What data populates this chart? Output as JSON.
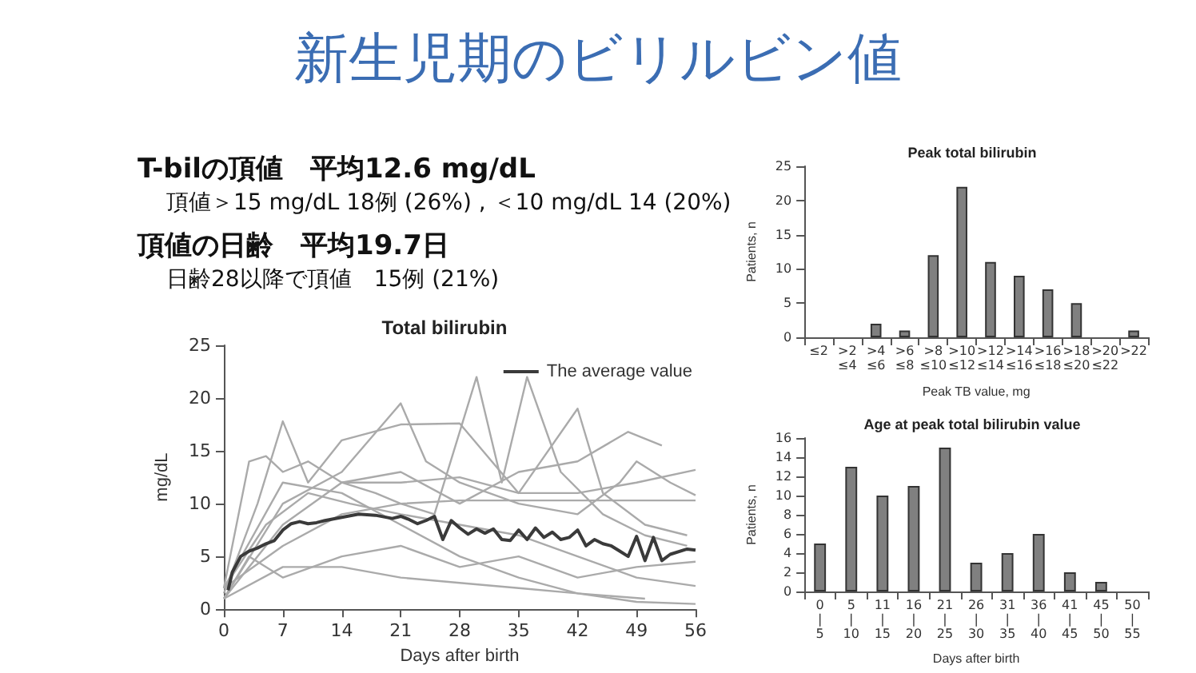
{
  "chart_data": [
    {
      "type": "other",
      "title": "新生児期のビリルビン値",
      "annotations": [
        "T-bilの頂値　平均12.6 mg/dL",
        "頂値＞15 mg/dL 18例 (26%) , ＜10 mg/dL 14 (20%)",
        "頂値の日齢　平均19.7日",
        "日齢28以降で頂値　15例 (21%)"
      ]
    },
    {
      "type": "line",
      "title": "Total bilirubin",
      "xlabel": "Days after birth",
      "ylabel": "mg/dL",
      "xlim": [
        0,
        56
      ],
      "xticks": [
        0,
        7,
        14,
        21,
        28,
        35,
        42,
        49,
        56
      ],
      "ylim": [
        0,
        25
      ],
      "yticks": [
        0,
        5,
        10,
        15,
        20,
        25
      ],
      "grid": false,
      "legend": "top right",
      "marker": "none",
      "line_style": "solid",
      "series": [
        {
          "color": "#aaaaaa",
          "x": [
            0,
            3,
            5,
            7,
            10,
            14,
            18,
            21,
            25,
            30,
            33,
            36,
            40,
            45,
            50,
            55
          ],
          "values": [
            2,
            14,
            14.5,
            13,
            14,
            12,
            11,
            10,
            9,
            22,
            12,
            22,
            13,
            9,
            7,
            6
          ]
        },
        {
          "color": "#aaaaaa",
          "x": [
            0,
            4,
            7,
            10,
            14,
            21,
            28,
            35,
            42,
            45,
            50,
            55
          ],
          "values": [
            1.5,
            10,
            17.8,
            12,
            16,
            17.5,
            17.6,
            11,
            19,
            11,
            8,
            7
          ]
        },
        {
          "color": "#aaaaaa",
          "x": [
            0,
            7,
            14,
            21,
            28,
            35,
            42,
            48,
            52
          ],
          "values": [
            1,
            8,
            12,
            13,
            10,
            13,
            14,
            16.8,
            15.5
          ]
        },
        {
          "color": "#aaaaaa",
          "x": [
            0,
            7,
            14,
            21,
            28,
            56
          ],
          "values": [
            2,
            6,
            9,
            10,
            10.3,
            10.3
          ]
        },
        {
          "color": "#aaaaaa",
          "x": [
            0,
            7,
            14,
            21,
            28,
            35,
            42,
            49,
            56
          ],
          "values": [
            1,
            4,
            4,
            3,
            2.5,
            2,
            1.5,
            0.7,
            0.5
          ]
        },
        {
          "color": "#aaaaaa",
          "x": [
            0,
            5,
            10,
            15,
            21,
            28,
            35,
            42,
            49,
            56
          ],
          "values": [
            2,
            8,
            11,
            10,
            9,
            8,
            7,
            5,
            3,
            2.2
          ]
        },
        {
          "color": "#aaaaaa",
          "x": [
            0,
            7,
            14,
            21,
            24,
            28,
            35,
            42,
            47,
            49,
            53,
            56
          ],
          "values": [
            1,
            10,
            13,
            19.5,
            14,
            12,
            10,
            9,
            12,
            14,
            12,
            10.8
          ]
        },
        {
          "color": "#aaaaaa",
          "x": [
            0,
            3,
            7,
            14,
            21,
            28,
            35,
            42,
            49,
            56
          ],
          "values": [
            1,
            5,
            3,
            5,
            6,
            4,
            5,
            3,
            4,
            4.5
          ]
        },
        {
          "color": "#aaaaaa",
          "x": [
            0,
            7,
            14,
            21,
            28,
            35,
            42,
            50
          ],
          "values": [
            2,
            12,
            11,
            8,
            5,
            3,
            1.5,
            1
          ]
        },
        {
          "color": "#aaaaaa",
          "x": [
            14,
            21,
            28,
            35,
            42,
            49,
            56
          ],
          "values": [
            12,
            12,
            12.5,
            11,
            11,
            12,
            13.2
          ]
        },
        {
          "name": "The average value",
          "color": "#3a3a3a",
          "x": [
            0.5,
            1,
            2,
            3,
            4,
            5,
            6,
            7,
            8,
            9,
            10,
            11,
            12,
            14,
            16,
            18,
            20,
            21,
            22,
            23,
            24,
            25,
            26,
            27,
            28,
            29,
            30,
            31,
            32,
            33,
            34,
            35,
            36,
            37,
            38,
            39,
            40,
            41,
            42,
            43,
            44,
            45,
            46,
            47,
            48,
            49,
            50,
            51,
            52,
            53,
            55,
            56
          ],
          "values": [
            1.8,
            3.5,
            5,
            5.5,
            5.8,
            6.2,
            6.5,
            7.5,
            8.1,
            8.3,
            8.1,
            8.2,
            8.4,
            8.7,
            9.0,
            8.9,
            8.6,
            8.8,
            8.5,
            8.1,
            8.4,
            8.8,
            6.6,
            8.4,
            7.7,
            7.1,
            7.6,
            7.2,
            7.6,
            6.6,
            6.5,
            7.5,
            6.6,
            7.7,
            6.8,
            7.3,
            6.6,
            6.8,
            7.5,
            6.0,
            6.6,
            6.2,
            6.0,
            5.5,
            5.0,
            6.9,
            4.6,
            6.8,
            4.6,
            5.2,
            5.7,
            5.6
          ]
        }
      ]
    },
    {
      "type": "bar",
      "title": "Peak total bilirubin",
      "xlabel": "Peak TB value, mg",
      "ylabel": "Patients, n",
      "categories": [
        "≤2",
        ">2\n≤4",
        ">4\n≤6",
        ">6\n≤8",
        ">8\n≤10",
        ">10\n≤12",
        ">12\n≤14",
        ">14\n≤16",
        ">16\n≤18",
        ">18\n≤20",
        ">20\n≤22",
        ">22"
      ],
      "values": [
        0,
        0,
        2,
        1,
        12,
        22,
        11,
        9,
        7,
        5,
        0,
        1
      ],
      "color": "#808080",
      "ylim": [
        0,
        25
      ],
      "yticks": [
        0,
        5,
        10,
        15,
        20,
        25
      ],
      "grid": false
    },
    {
      "type": "bar",
      "title": "Age at peak total bilirubin value",
      "xlabel": "Days after birth",
      "ylabel": "Patients, n",
      "categories": [
        "0\n|\n5",
        "5\n|\n10",
        "11\n|\n15",
        "16\n|\n20",
        "21\n|\n25",
        "26\n|\n30",
        "31\n|\n35",
        "36\n|\n40",
        "41\n|\n45",
        "45\n|\n50",
        "50\n|\n55"
      ],
      "values": [
        5,
        13,
        10,
        11,
        15,
        3,
        4,
        6,
        2,
        1,
        0
      ],
      "color": "#808080",
      "ylim": [
        0,
        16
      ],
      "yticks": [
        0,
        2,
        4,
        6,
        8,
        10,
        12,
        14,
        16
      ],
      "grid": false
    }
  ]
}
